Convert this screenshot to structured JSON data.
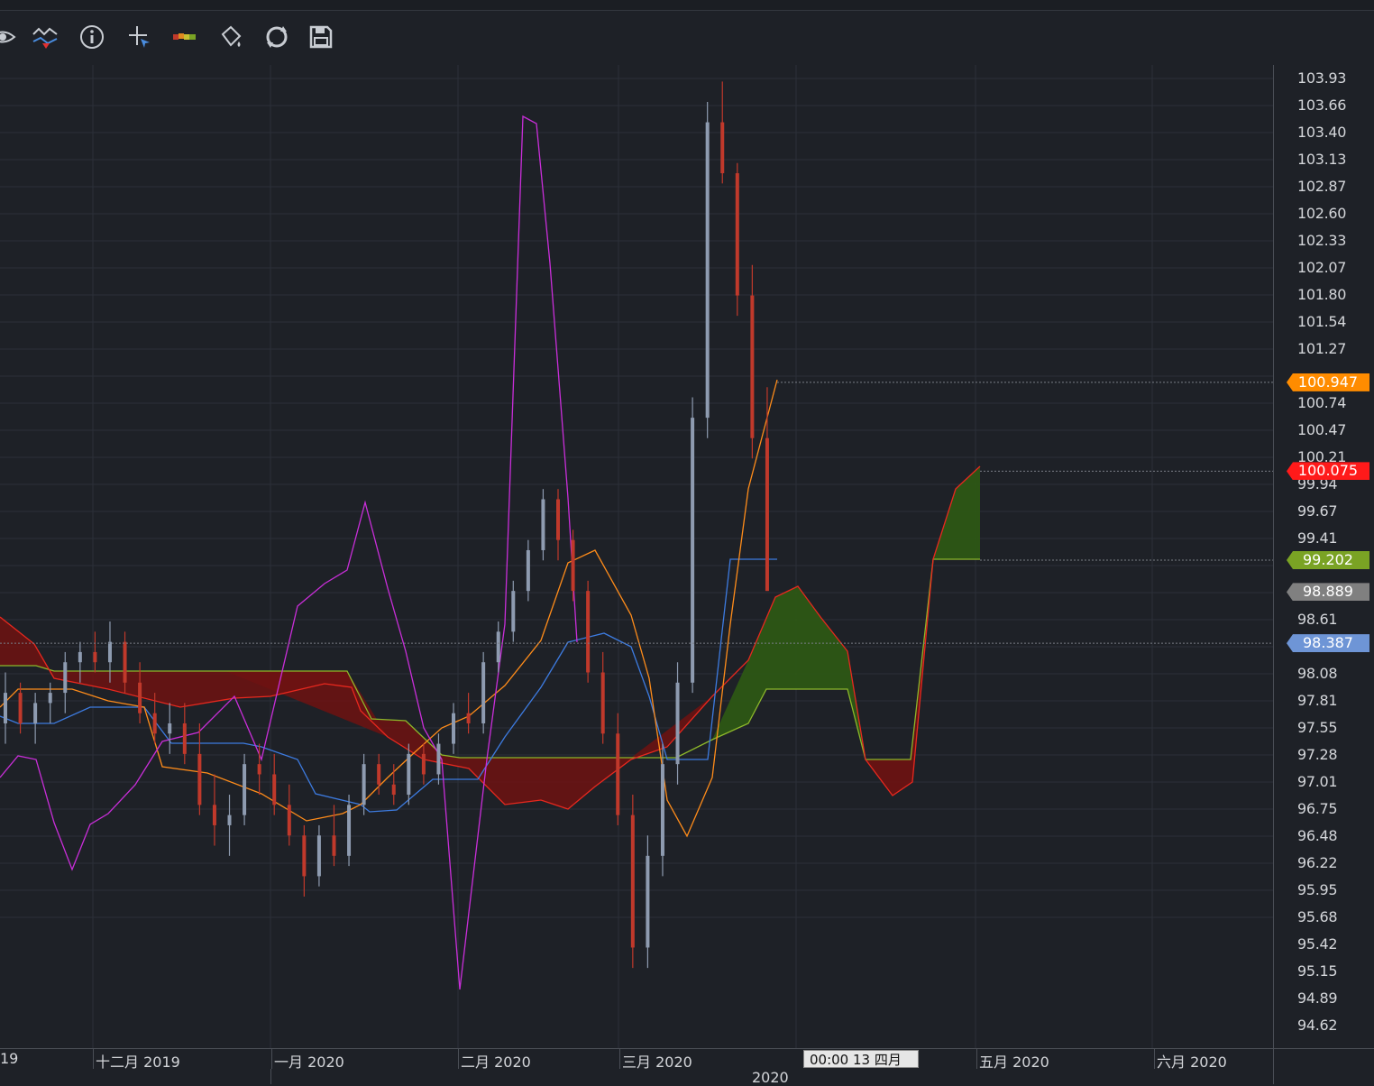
{
  "toolbar": {
    "icons": [
      "eye-icon",
      "indicator-icon",
      "info-icon",
      "crosshair-icon",
      "ribbon-icon",
      "paint-bucket-icon",
      "refresh-icon",
      "save-icon"
    ]
  },
  "price_axis": {
    "ticks": [
      "103.93",
      "103.66",
      "103.40",
      "103.13",
      "102.87",
      "102.60",
      "102.33",
      "102.07",
      "101.80",
      "101.54",
      "101.27",
      "100.74",
      "100.47",
      "100.21",
      "99.94",
      "99.67",
      "99.41",
      "98.61",
      "98.08",
      "97.81",
      "97.55",
      "97.28",
      "97.01",
      "96.75",
      "96.48",
      "96.22",
      "95.95",
      "95.68",
      "95.42",
      "95.15",
      "94.89",
      "94.62"
    ],
    "tags": [
      {
        "label": "100.947",
        "color": "#ff8c00"
      },
      {
        "label": "100.075",
        "color": "#ff1a1a"
      },
      {
        "label": "99.202",
        "color": "#7aa324"
      },
      {
        "label": "98.889",
        "color": "#808080"
      },
      {
        "label": "98.387",
        "color": "#6e95d6"
      }
    ]
  },
  "time_axis": {
    "labels": [
      "19",
      "十二月 2019",
      "一月 2020",
      "二月 2020",
      "三月 2020",
      "五月 2020",
      "六月 2020"
    ],
    "cursor_label": "00:00 13 四月",
    "year_label": "2020"
  },
  "colors": {
    "background": "#1e2127",
    "grid": "#2c3038",
    "bull_candle": "#8e9bb0",
    "bear_candle": "#c0392b",
    "tenkan": "#3d7be0",
    "kijun": "#ff8c1a",
    "chikou": "#c92ed9",
    "span_a": "#e8281e",
    "span_b": "#8db82a",
    "cloud_bull": "#2d5a14",
    "cloud_bear": "#6e1212"
  },
  "chart_data": {
    "type": "candlestick",
    "indicator": "Ichimoku",
    "ylim": [
      94.5,
      104.1
    ],
    "x_categories": [
      "19",
      "十二月 2019",
      "一月 2020",
      "二月 2020",
      "三月 2020",
      "四月 2020",
      "五月 2020",
      "六月 2020"
    ],
    "last_values": {
      "kijun": 100.947,
      "span_a": 100.075,
      "span_b": 99.202,
      "close": 98.889,
      "tenkan": 98.387
    },
    "candles": [
      [
        97.6,
        98.1,
        97.4,
        97.9
      ],
      [
        97.9,
        98.0,
        97.5,
        97.6
      ],
      [
        97.6,
        97.9,
        97.4,
        97.8
      ],
      [
        97.8,
        98.0,
        97.6,
        97.9
      ],
      [
        97.9,
        98.3,
        97.7,
        98.2
      ],
      [
        98.2,
        98.4,
        98.0,
        98.3
      ],
      [
        98.3,
        98.5,
        98.1,
        98.2
      ],
      [
        98.2,
        98.6,
        98.0,
        98.4
      ],
      [
        98.4,
        98.5,
        97.9,
        98.0
      ],
      [
        98.0,
        98.2,
        97.6,
        97.7
      ],
      [
        97.7,
        97.9,
        97.4,
        97.5
      ],
      [
        97.5,
        97.8,
        97.3,
        97.6
      ],
      [
        97.6,
        97.8,
        97.2,
        97.3
      ],
      [
        97.3,
        97.6,
        96.7,
        96.8
      ],
      [
        96.8,
        97.1,
        96.4,
        96.6
      ],
      [
        96.6,
        96.9,
        96.3,
        96.7
      ],
      [
        96.7,
        97.3,
        96.6,
        97.2
      ],
      [
        97.2,
        97.4,
        96.9,
        97.1
      ],
      [
        97.1,
        97.3,
        96.7,
        96.8
      ],
      [
        96.8,
        97.0,
        96.4,
        96.5
      ],
      [
        96.5,
        96.6,
        95.9,
        96.1
      ],
      [
        96.1,
        96.6,
        96.0,
        96.5
      ],
      [
        96.5,
        96.8,
        96.2,
        96.3
      ],
      [
        96.3,
        96.9,
        96.2,
        96.8
      ],
      [
        96.8,
        97.3,
        96.7,
        97.2
      ],
      [
        97.2,
        97.3,
        96.9,
        97.0
      ],
      [
        97.0,
        97.2,
        96.8,
        96.9
      ],
      [
        96.9,
        97.4,
        96.8,
        97.3
      ],
      [
        97.3,
        97.4,
        97.0,
        97.1
      ],
      [
        97.1,
        97.5,
        97.0,
        97.4
      ],
      [
        97.4,
        97.8,
        97.3,
        97.7
      ],
      [
        97.7,
        97.9,
        97.5,
        97.6
      ],
      [
        97.6,
        98.3,
        97.5,
        98.2
      ],
      [
        98.2,
        98.6,
        98.1,
        98.5
      ],
      [
        98.5,
        99.0,
        98.4,
        98.9
      ],
      [
        98.9,
        99.4,
        98.8,
        99.3
      ],
      [
        99.3,
        99.9,
        99.2,
        99.8
      ],
      [
        99.8,
        99.9,
        99.2,
        99.4
      ],
      [
        99.4,
        99.5,
        98.8,
        98.9
      ],
      [
        98.9,
        99.0,
        98.0,
        98.1
      ],
      [
        98.1,
        98.3,
        97.4,
        97.5
      ],
      [
        97.5,
        97.7,
        96.6,
        96.7
      ],
      [
        96.7,
        96.9,
        95.2,
        95.4
      ],
      [
        95.4,
        96.5,
        95.2,
        96.3
      ],
      [
        96.3,
        97.4,
        96.1,
        97.2
      ],
      [
        97.2,
        98.2,
        97.0,
        98.0
      ],
      [
        98.0,
        100.8,
        97.9,
        100.6
      ],
      [
        100.6,
        103.7,
        100.4,
        103.5
      ],
      [
        103.5,
        103.9,
        102.9,
        103.0
      ],
      [
        103.0,
        103.1,
        101.6,
        101.8
      ],
      [
        101.8,
        102.1,
        100.2,
        100.4
      ],
      [
        100.4,
        100.9,
        98.9,
        98.9
      ]
    ]
  }
}
